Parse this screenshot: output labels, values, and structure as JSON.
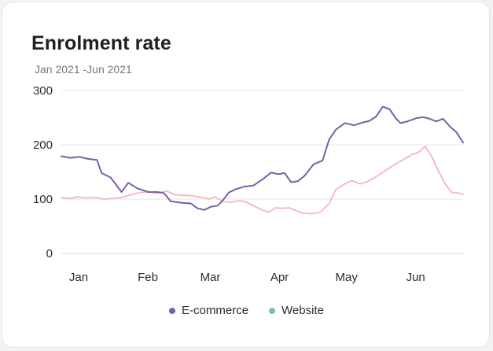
{
  "card": {
    "title": "Enrolment rate",
    "subtitle": "Jan 2021 -Jun 2021"
  },
  "chart_data": {
    "type": "line",
    "title": "Enrolment rate",
    "subtitle": "Jan 2021 -Jun 2021",
    "x_ticks": [
      "Jan",
      "Feb",
      "Mar",
      "Apr",
      "May",
      "Jun"
    ],
    "y_ticks": [
      0,
      100,
      200,
      300
    ],
    "ylim": [
      0,
      300
    ],
    "xlim": [
      "2021-01-01",
      "2021-06-30"
    ],
    "grid": "horizontal",
    "legend": "bottom-center",
    "series": [
      {
        "name": "E-commerce",
        "color": "#7b5ea7",
        "points": [
          [
            "2021-01-01",
            179
          ],
          [
            "2021-01-05",
            176
          ],
          [
            "2021-01-09",
            178
          ],
          [
            "2021-01-13",
            174
          ],
          [
            "2021-01-17",
            172
          ],
          [
            "2021-01-19",
            148
          ],
          [
            "2021-01-23",
            140
          ],
          [
            "2021-01-28",
            113
          ],
          [
            "2021-01-31",
            130
          ],
          [
            "2021-02-04",
            120
          ],
          [
            "2021-02-09",
            113
          ],
          [
            "2021-02-13",
            113
          ],
          [
            "2021-02-16",
            111
          ],
          [
            "2021-02-19",
            96
          ],
          [
            "2021-02-24",
            93
          ],
          [
            "2021-02-28",
            92
          ],
          [
            "2021-03-03",
            83
          ],
          [
            "2021-03-06",
            80
          ],
          [
            "2021-03-09",
            86
          ],
          [
            "2021-03-12",
            88
          ],
          [
            "2021-03-14",
            96
          ],
          [
            "2021-03-17",
            112
          ],
          [
            "2021-03-20",
            118
          ],
          [
            "2021-03-24",
            123
          ],
          [
            "2021-03-28",
            125
          ],
          [
            "2021-04-01",
            136
          ],
          [
            "2021-04-05",
            149
          ],
          [
            "2021-04-08",
            146
          ],
          [
            "2021-04-11",
            148
          ],
          [
            "2021-04-14",
            131
          ],
          [
            "2021-04-17",
            133
          ],
          [
            "2021-04-20",
            143
          ],
          [
            "2021-04-24",
            164
          ],
          [
            "2021-04-28",
            171
          ],
          [
            "2021-05-01",
            210
          ],
          [
            "2021-05-04",
            228
          ],
          [
            "2021-05-08",
            240
          ],
          [
            "2021-05-12",
            236
          ],
          [
            "2021-05-16",
            241
          ],
          [
            "2021-05-19",
            244
          ],
          [
            "2021-05-22",
            252
          ],
          [
            "2021-05-25",
            270
          ],
          [
            "2021-05-28",
            266
          ],
          [
            "2021-05-31",
            248
          ],
          [
            "2021-06-02",
            240
          ],
          [
            "2021-06-05",
            243
          ],
          [
            "2021-06-09",
            249
          ],
          [
            "2021-06-12",
            251
          ],
          [
            "2021-06-15",
            248
          ],
          [
            "2021-06-18",
            243
          ],
          [
            "2021-06-21",
            248
          ],
          [
            "2021-06-24",
            234
          ],
          [
            "2021-06-27",
            223
          ],
          [
            "2021-06-30",
            204
          ]
        ]
      },
      {
        "name": "Website",
        "color": "#7fbdc4",
        "line_color": "#f9b4bc",
        "points": [
          [
            "2021-01-01",
            103
          ],
          [
            "2021-01-05",
            101
          ],
          [
            "2021-01-08",
            104
          ],
          [
            "2021-01-12",
            102
          ],
          [
            "2021-01-16",
            103
          ],
          [
            "2021-01-20",
            100
          ],
          [
            "2021-01-24",
            101
          ],
          [
            "2021-01-28",
            103
          ],
          [
            "2021-02-01",
            108
          ],
          [
            "2021-02-05",
            112
          ],
          [
            "2021-02-09",
            113
          ],
          [
            "2021-02-13",
            111
          ],
          [
            "2021-02-17",
            115
          ],
          [
            "2021-02-21",
            108
          ],
          [
            "2021-02-25",
            107
          ],
          [
            "2021-03-01",
            106
          ],
          [
            "2021-03-05",
            103
          ],
          [
            "2021-03-08",
            100
          ],
          [
            "2021-03-11",
            104
          ],
          [
            "2021-03-14",
            96
          ],
          [
            "2021-03-18",
            94
          ],
          [
            "2021-03-21",
            97
          ],
          [
            "2021-03-24",
            96
          ],
          [
            "2021-03-26",
            92
          ],
          [
            "2021-03-28",
            88
          ],
          [
            "2021-04-01",
            80
          ],
          [
            "2021-04-04",
            76
          ],
          [
            "2021-04-07",
            84
          ],
          [
            "2021-04-10",
            83
          ],
          [
            "2021-04-13",
            84
          ],
          [
            "2021-04-16",
            79
          ],
          [
            "2021-04-19",
            74
          ],
          [
            "2021-04-23",
            73
          ],
          [
            "2021-04-27",
            76
          ],
          [
            "2021-05-01",
            92
          ],
          [
            "2021-05-04",
            118
          ],
          [
            "2021-05-08",
            128
          ],
          [
            "2021-05-11",
            134
          ],
          [
            "2021-05-15",
            128
          ],
          [
            "2021-05-18",
            132
          ],
          [
            "2021-05-22",
            141
          ],
          [
            "2021-05-26",
            152
          ],
          [
            "2021-05-30",
            163
          ],
          [
            "2021-06-03",
            172
          ],
          [
            "2021-06-07",
            182
          ],
          [
            "2021-06-10",
            186
          ],
          [
            "2021-06-13",
            197
          ],
          [
            "2021-06-16",
            178
          ],
          [
            "2021-06-19",
            151
          ],
          [
            "2021-06-22",
            128
          ],
          [
            "2021-06-25",
            112
          ],
          [
            "2021-06-28",
            111
          ],
          [
            "2021-06-30",
            108
          ]
        ]
      }
    ]
  }
}
